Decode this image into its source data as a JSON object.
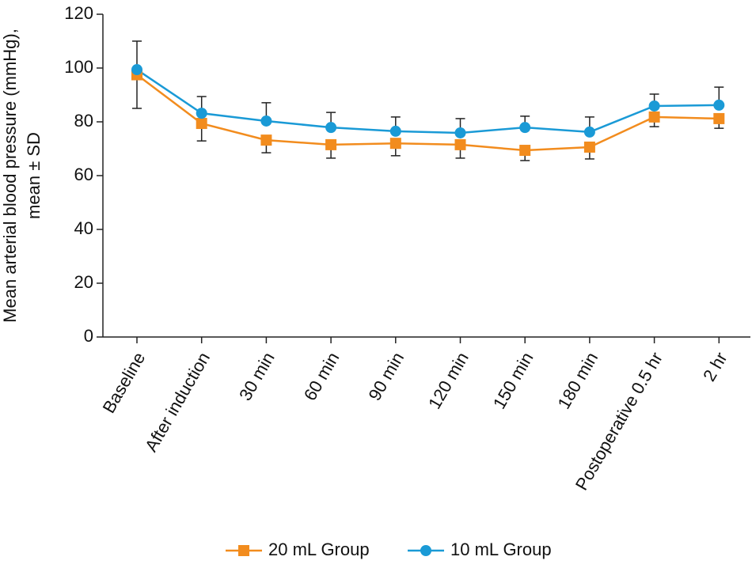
{
  "chart_data": {
    "type": "line",
    "y_label": [
      "Mean arterial blood pressure (mmHg),",
      "mean ± SD"
    ],
    "categories": [
      "Baseline",
      "After induction",
      "30 min",
      "60 min",
      "90 min",
      "120 min",
      "150 min",
      "180 min",
      "Postoperative 0.5 hr",
      "2 hr"
    ],
    "series": [
      {
        "name": "20 mL Group",
        "color": "#f28c1e",
        "marker": "square",
        "error_side": "down",
        "values": [
          97.5,
          79.4,
          73.2,
          71.5,
          72,
          71.5,
          69.4,
          70.6,
          81.8,
          81.2
        ],
        "errors": [
          12.5,
          6.5,
          4.7,
          5,
          4.6,
          5,
          3.8,
          4.4,
          3.6,
          3.6
        ]
      },
      {
        "name": "10 mL Group",
        "color": "#1a9ad6",
        "marker": "circle",
        "error_side": "up",
        "values": [
          99.4,
          83.2,
          80.3,
          77.9,
          76.5,
          75.9,
          77.9,
          76.2,
          85.9,
          86.2
        ],
        "errors": [
          10.6,
          6.2,
          6.8,
          5.6,
          5.3,
          5.3,
          4.2,
          5.6,
          4.4,
          6.7
        ]
      }
    ],
    "ylim": [
      0,
      120
    ],
    "yticks": [
      0,
      20,
      40,
      60,
      80,
      100,
      120
    ],
    "grid": false,
    "legend": "bottom"
  }
}
